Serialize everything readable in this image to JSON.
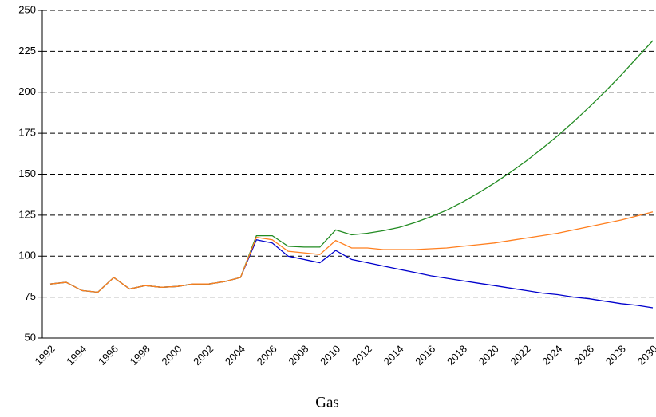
{
  "chart_data": {
    "type": "line",
    "title": "Gas",
    "categories": [
      "1992",
      null,
      "1994",
      null,
      "1996",
      null,
      "1998",
      null,
      "2000",
      null,
      "2002",
      null,
      "2004",
      null,
      "2006",
      null,
      "2008",
      null,
      "2010",
      null,
      "2012",
      null,
      "2014",
      null,
      "2016",
      null,
      "2018",
      null,
      "2020",
      null,
      "2022",
      null,
      "2024",
      null,
      "2026",
      null,
      "2028",
      null,
      "2030"
    ],
    "series": [
      {
        "color": "#0000cc",
        "values": [
          83,
          84,
          79,
          78,
          87,
          80,
          82,
          81,
          81.5,
          83,
          83,
          84.5,
          87,
          110,
          108,
          100,
          98,
          96,
          103.5,
          98,
          96,
          94,
          92,
          90,
          88,
          86.5,
          85,
          83.5,
          82,
          80.5,
          79,
          77.5,
          76.5,
          75,
          74,
          72.5,
          71,
          70,
          68.5
        ]
      },
      {
        "color": "#228b22",
        "values": [
          83,
          84,
          79,
          78,
          87,
          80,
          82,
          81,
          81.5,
          83,
          83,
          84.5,
          87,
          112.5,
          112.5,
          106,
          105.5,
          105.5,
          116,
          113,
          114,
          115.5,
          117.5,
          120.5,
          124,
          128,
          133,
          138.5,
          144.5,
          151,
          158,
          165.5,
          173.5,
          182,
          191,
          200.5,
          210.5,
          221,
          231.5
        ]
      },
      {
        "color": "#ff7f1f",
        "values": [
          83,
          84,
          79,
          78,
          87,
          80,
          82,
          81,
          81.5,
          83,
          83,
          84.5,
          87,
          111.5,
          110,
          103,
          102,
          101,
          109.5,
          105,
          105,
          104,
          104,
          104,
          104.5,
          105,
          106,
          107,
          108,
          109.5,
          111,
          112.5,
          114,
          116,
          118,
          120,
          122,
          124.5,
          127
        ]
      }
    ],
    "ylim": [
      50,
      250
    ],
    "yticks": [
      50,
      75,
      100,
      125,
      150,
      175,
      200,
      225,
      250
    ],
    "grid": true
  }
}
